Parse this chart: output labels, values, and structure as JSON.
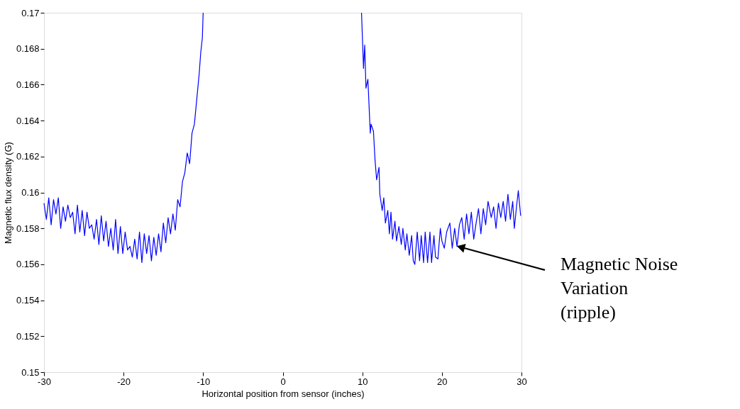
{
  "chart_data": {
    "type": "line",
    "xlabel": "Horizontal position from sensor (inches)",
    "ylabel": "Magnetic flux density (G)",
    "xlim": [
      -30,
      30
    ],
    "xticks": [
      -30,
      -20,
      -10,
      0,
      10,
      20,
      30
    ],
    "ylim": [
      0.15,
      0.17
    ],
    "yticks": [
      0.15,
      0.152,
      0.154,
      0.156,
      0.158,
      0.16,
      0.162,
      0.164,
      0.166,
      0.168,
      0.17
    ],
    "grid": false,
    "legend": false,
    "marker": "none",
    "line_style": "solid",
    "annotations": [
      {
        "text": "Magnetic Noise\nVariation\n(ripple)",
        "x": 22,
        "y": 0.157
      }
    ],
    "series": [
      {
        "color": "#0000ff",
        "x": [
          -30,
          -29.7,
          -29.4,
          -29.1,
          -28.8,
          -28.5,
          -28.2,
          -27.9,
          -27.6,
          -27.3,
          -27,
          -26.7,
          -26.4,
          -26.1,
          -25.8,
          -25.5,
          -25.2,
          -24.9,
          -24.6,
          -24.3,
          -24,
          -23.7,
          -23.4,
          -23.1,
          -22.8,
          -22.5,
          -22.2,
          -21.9,
          -21.6,
          -21.3,
          -21,
          -20.7,
          -20.4,
          -20.1,
          -19.8,
          -19.5,
          -19.2,
          -18.9,
          -18.6,
          -18.3,
          -18,
          -17.7,
          -17.4,
          -17.1,
          -16.8,
          -16.5,
          -16.2,
          -15.9,
          -15.6,
          -15.3,
          -15,
          -14.7,
          -14.4,
          -14.1,
          -13.8,
          -13.5,
          -13.2,
          -12.9,
          -12.6,
          -12.3,
          -12,
          -11.7,
          -11.4,
          -11.1,
          -10.8,
          -10.5,
          -10.3,
          -10.1,
          -10,
          0,
          9.9,
          10.15,
          10.3,
          10.46,
          10.7,
          11,
          11.1,
          11.4,
          11.6,
          11.8,
          12.1,
          12.2,
          12.5,
          12.7,
          12.9,
          13.2,
          13.4,
          13.6,
          13.8,
          14.1,
          14.3,
          14.6,
          14.9,
          15.1,
          15.4,
          15.6,
          15.9,
          16.2,
          16.4,
          16.6,
          16.9,
          17.2,
          17.4,
          17.7,
          17.9,
          18.2,
          18.5,
          18.7,
          19,
          19.2,
          19.5,
          19.8,
          20,
          20.3,
          20.6,
          21,
          21.3,
          21.6,
          21.9,
          22.2,
          22.5,
          22.8,
          23.1,
          23.4,
          23.7,
          24,
          24.3,
          24.6,
          24.9,
          25.2,
          25.5,
          25.8,
          26.2,
          26.5,
          26.8,
          27.1,
          27.4,
          27.7,
          28,
          28.3,
          28.6,
          28.9,
          29.1,
          29.4,
          29.6,
          29.9
        ],
        "values": [
          0.1594,
          0.1585,
          0.1597,
          0.1582,
          0.1596,
          0.1588,
          0.1597,
          0.158,
          0.1592,
          0.1584,
          0.1593,
          0.1586,
          0.1589,
          0.1577,
          0.1593,
          0.1578,
          0.159,
          0.1576,
          0.1589,
          0.158,
          0.1582,
          0.1574,
          0.1585,
          0.1571,
          0.1587,
          0.1573,
          0.1584,
          0.157,
          0.158,
          0.1568,
          0.1585,
          0.1566,
          0.1581,
          0.1566,
          0.1578,
          0.1568,
          0.157,
          0.1564,
          0.1574,
          0.1563,
          0.1578,
          0.1561,
          0.1577,
          0.1566,
          0.1576,
          0.1562,
          0.1575,
          0.1565,
          0.1577,
          0.1567,
          0.1583,
          0.1572,
          0.1586,
          0.1577,
          0.1588,
          0.1579,
          0.1596,
          0.1592,
          0.1606,
          0.1611,
          0.1622,
          0.1616,
          0.1633,
          0.1638,
          0.1652,
          0.1666,
          0.1678,
          0.1686,
          0.17,
          null,
          0.17,
          0.1669,
          0.1682,
          0.1658,
          0.1663,
          0.1633,
          0.1638,
          0.1634,
          0.1618,
          0.1607,
          0.1614,
          0.1599,
          0.159,
          0.1597,
          0.1583,
          0.159,
          0.1577,
          0.1589,
          0.1574,
          0.1584,
          0.1573,
          0.1581,
          0.1571,
          0.158,
          0.1568,
          0.1577,
          0.1565,
          0.1576,
          0.1562,
          0.156,
          0.1578,
          0.1562,
          0.1576,
          0.1561,
          0.1578,
          0.1561,
          0.1578,
          0.1561,
          0.1576,
          0.1564,
          0.1563,
          0.158,
          0.1573,
          0.1569,
          0.1578,
          0.1583,
          0.1569,
          0.158,
          0.157,
          0.1582,
          0.1586,
          0.1574,
          0.1588,
          0.1577,
          0.1589,
          0.1574,
          0.1583,
          0.1591,
          0.1577,
          0.1591,
          0.1582,
          0.1595,
          0.1586,
          0.1592,
          0.158,
          0.1594,
          0.1586,
          0.1595,
          0.1584,
          0.1599,
          0.1585,
          0.1595,
          0.158,
          0.1593,
          0.1601,
          0.1587
        ]
      }
    ]
  }
}
